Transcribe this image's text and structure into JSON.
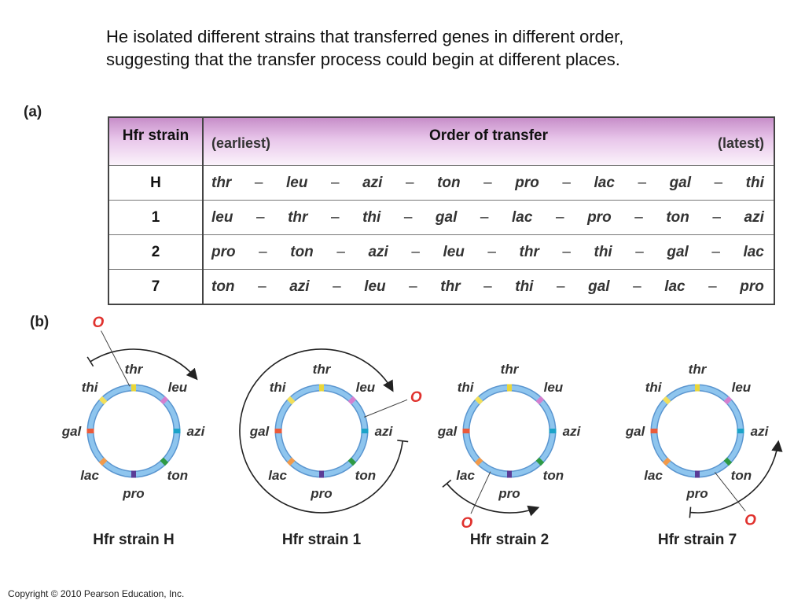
{
  "intro_text": "He isolated different strains that transferred genes in different order, suggesting that the transfer process could begin at different places.",
  "part_a_label": "(a)",
  "part_b_label": "(b)",
  "table": {
    "header_strain": "Hfr strain",
    "header_order": "Order of transfer",
    "header_earliest": "(earliest)",
    "header_latest": "(latest)",
    "separator": "–",
    "rows": [
      {
        "strain": "H",
        "genes": [
          "thr",
          "leu",
          "azi",
          "ton",
          "pro",
          "lac",
          "gal",
          "thi"
        ]
      },
      {
        "strain": "1",
        "genes": [
          "leu",
          "thr",
          "thi",
          "gal",
          "lac",
          "pro",
          "ton",
          "azi"
        ]
      },
      {
        "strain": "2",
        "genes": [
          "pro",
          "ton",
          "azi",
          "leu",
          "thr",
          "thi",
          "gal",
          "lac"
        ]
      },
      {
        "strain": "7",
        "genes": [
          "ton",
          "azi",
          "leu",
          "thr",
          "thi",
          "gal",
          "lac",
          "pro"
        ]
      }
    ]
  },
  "maps": {
    "origin_label": "O",
    "genes": [
      {
        "name": "thr",
        "color": "#e9d63a"
      },
      {
        "name": "leu",
        "color": "#d47fcf"
      },
      {
        "name": "azi",
        "color": "#1ba3c9"
      },
      {
        "name": "ton",
        "color": "#2e9a44"
      },
      {
        "name": "pro",
        "color": "#5b3c96"
      },
      {
        "name": "lac",
        "color": "#f29a4a"
      },
      {
        "name": "gal",
        "color": "#ea5a3a"
      },
      {
        "name": "thi",
        "color": "#f2df5a"
      }
    ],
    "ring_color": "#8ec5ee",
    "strains": [
      {
        "title": "Hfr strain H",
        "direction": "clockwise"
      },
      {
        "title": "Hfr strain 1",
        "direction": "clockwise"
      },
      {
        "title": "Hfr strain 2",
        "direction": "counterclockwise"
      },
      {
        "title": "Hfr strain 7",
        "direction": "counterclockwise"
      }
    ]
  },
  "copyright": "Copyright © 2010 Pearson Education, Inc."
}
